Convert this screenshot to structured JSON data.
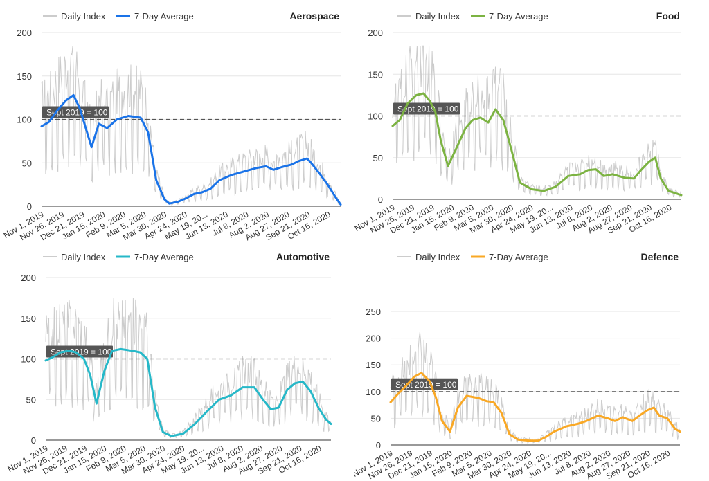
{
  "legend": {
    "daily_label": "Daily Index",
    "avg_label": "7-Day Average"
  },
  "reference": {
    "label": "Sept 2019 = 100",
    "value": 100
  },
  "x_tick_labels": [
    "Nov 1, 2019",
    "Nov 26, 2019",
    "Dec 21, 2019",
    "Jan 15, 2020",
    "Feb 9, 2020",
    "Mar 5, 2020",
    "Mar 30, 2020",
    "Apr 24, 2020",
    "May 19, 20...",
    "Jun 13, 2020",
    "Jul 8, 2020",
    "Aug 2, 2020",
    "Aug 27, 2020",
    "Sep 21, 2020",
    "Oct 16, 2020"
  ],
  "colors": {
    "daily": "#cccccc",
    "grid": "#e6e6e6",
    "axis": "#333333",
    "ref_line": "#555555",
    "ref_box": "#555555",
    "ref_text": "#ffffff"
  },
  "chart_data": [
    {
      "type": "line",
      "title": "Aerospace",
      "ylim": [
        0,
        200
      ],
      "yticks": [
        0,
        50,
        100,
        150,
        200
      ],
      "avg_color": "#1a73e8",
      "series": [
        {
          "name": "7-Day Average",
          "x": [
            "2019-11-01",
            "2019-11-10",
            "2019-11-20",
            "2019-12-01",
            "2019-12-10",
            "2019-12-18",
            "2019-12-25",
            "2020-01-01",
            "2020-01-10",
            "2020-01-20",
            "2020-02-01",
            "2020-02-15",
            "2020-03-01",
            "2020-03-10",
            "2020-03-20",
            "2020-03-30",
            "2020-04-05",
            "2020-04-15",
            "2020-04-25",
            "2020-05-05",
            "2020-05-15",
            "2020-05-25",
            "2020-06-05",
            "2020-06-20",
            "2020-07-05",
            "2020-07-20",
            "2020-08-01",
            "2020-08-10",
            "2020-08-20",
            "2020-09-01",
            "2020-09-10",
            "2020-09-20",
            "2020-09-25",
            "2020-10-05",
            "2020-10-15",
            "2020-10-25",
            "2020-10-31"
          ],
          "y": [
            92,
            97,
            110,
            122,
            128,
            112,
            90,
            68,
            95,
            90,
            100,
            104,
            102,
            85,
            30,
            8,
            3,
            5,
            9,
            14,
            16,
            20,
            30,
            36,
            40,
            44,
            46,
            42,
            45,
            48,
            52,
            55,
            50,
            38,
            25,
            10,
            2
          ]
        }
      ]
    },
    {
      "type": "line",
      "title": "Food",
      "ylim": [
        0,
        200
      ],
      "yticks": [
        0,
        50,
        100,
        150,
        200
      ],
      "avg_color": "#7cb342",
      "series": [
        {
          "name": "7-Day Average",
          "x": [
            "2019-11-01",
            "2019-11-10",
            "2019-11-20",
            "2019-12-01",
            "2019-12-10",
            "2019-12-18",
            "2019-12-25",
            "2020-01-01",
            "2020-01-10",
            "2020-01-20",
            "2020-02-01",
            "2020-02-10",
            "2020-02-20",
            "2020-03-01",
            "2020-03-10",
            "2020-03-20",
            "2020-03-30",
            "2020-04-10",
            "2020-04-25",
            "2020-05-10",
            "2020-05-25",
            "2020-06-10",
            "2020-06-25",
            "2020-07-05",
            "2020-07-15",
            "2020-07-25",
            "2020-08-05",
            "2020-08-20",
            "2020-09-01",
            "2020-09-10",
            "2020-09-20",
            "2020-09-28",
            "2020-10-05",
            "2020-10-15",
            "2020-10-31"
          ],
          "y": [
            88,
            95,
            115,
            125,
            127,
            118,
            105,
            70,
            40,
            60,
            85,
            95,
            98,
            92,
            108,
            95,
            60,
            20,
            12,
            10,
            15,
            28,
            30,
            35,
            36,
            28,
            30,
            26,
            25,
            35,
            45,
            50,
            25,
            10,
            5
          ]
        }
      ]
    },
    {
      "type": "line",
      "title": "Automotive",
      "ylim": [
        0,
        200
      ],
      "yticks": [
        0,
        50,
        100,
        150,
        200
      ],
      "avg_color": "#26b8c8",
      "series": [
        {
          "name": "7-Day Average",
          "x": [
            "2019-11-01",
            "2019-11-10",
            "2019-11-20",
            "2019-12-01",
            "2019-12-10",
            "2019-12-20",
            "2019-12-28",
            "2020-01-05",
            "2020-01-15",
            "2020-01-25",
            "2020-02-05",
            "2020-02-20",
            "2020-03-01",
            "2020-03-10",
            "2020-03-20",
            "2020-03-30",
            "2020-04-10",
            "2020-04-25",
            "2020-05-10",
            "2020-05-25",
            "2020-06-10",
            "2020-06-25",
            "2020-07-10",
            "2020-07-25",
            "2020-08-05",
            "2020-08-15",
            "2020-08-25",
            "2020-09-05",
            "2020-09-15",
            "2020-09-25",
            "2020-10-05",
            "2020-10-15",
            "2020-10-25",
            "2020-10-31"
          ],
          "y": [
            98,
            102,
            108,
            110,
            108,
            100,
            80,
            45,
            85,
            110,
            112,
            110,
            108,
            100,
            40,
            10,
            5,
            8,
            20,
            35,
            50,
            55,
            65,
            65,
            50,
            38,
            40,
            62,
            70,
            72,
            60,
            40,
            25,
            20
          ]
        }
      ]
    },
    {
      "type": "line",
      "title": "Defence",
      "ylim": [
        0,
        250
      ],
      "yticks": [
        0,
        50,
        100,
        150,
        200,
        250
      ],
      "avg_color": "#f9a825",
      "series": [
        {
          "name": "7-Day Average",
          "x": [
            "2019-11-01",
            "2019-11-10",
            "2019-11-20",
            "2019-12-01",
            "2019-12-10",
            "2019-12-20",
            "2019-12-28",
            "2020-01-05",
            "2020-01-15",
            "2020-01-25",
            "2020-02-05",
            "2020-02-20",
            "2020-03-01",
            "2020-03-10",
            "2020-03-20",
            "2020-03-30",
            "2020-04-10",
            "2020-04-25",
            "2020-05-05",
            "2020-05-15",
            "2020-05-25",
            "2020-06-10",
            "2020-06-25",
            "2020-07-05",
            "2020-07-20",
            "2020-08-01",
            "2020-08-10",
            "2020-08-20",
            "2020-09-01",
            "2020-09-10",
            "2020-09-20",
            "2020-09-28",
            "2020-10-05",
            "2020-10-15",
            "2020-10-25",
            "2020-10-31"
          ],
          "y": [
            80,
            95,
            110,
            128,
            135,
            120,
            90,
            45,
            25,
            70,
            92,
            88,
            82,
            80,
            60,
            20,
            10,
            8,
            8,
            15,
            25,
            35,
            40,
            45,
            55,
            50,
            45,
            52,
            45,
            55,
            65,
            70,
            55,
            50,
            30,
            25
          ]
        }
      ]
    }
  ]
}
